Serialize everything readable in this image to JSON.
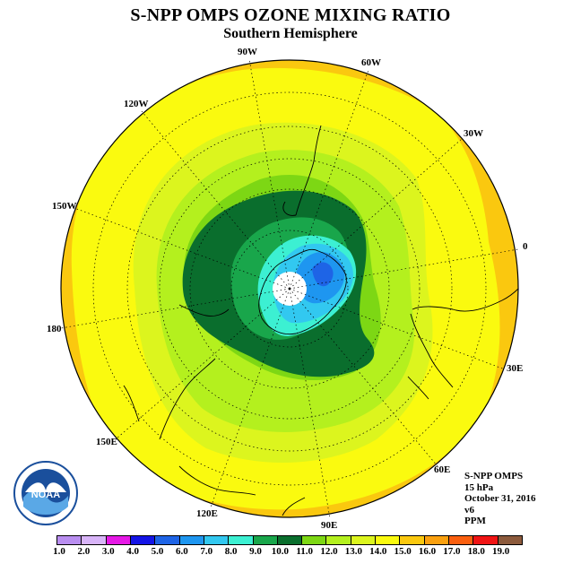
{
  "title": "S-NPP OMPS OZONE MIXING RATIO",
  "subtitle": "Southern Hemisphere",
  "lon_labels": [
    "90W",
    "60W",
    "30W",
    "0",
    "30E",
    "60E",
    "90E",
    "120E",
    "150E",
    "180",
    "150W",
    "120W"
  ],
  "info": {
    "instrument": "S-NPP OMPS",
    "level": "15 hPa",
    "date": "October 31, 2016",
    "version": "v6",
    "units": "PPM"
  },
  "colorbar": {
    "ticks": [
      "1.0",
      "2.0",
      "3.0",
      "4.0",
      "5.0",
      "6.0",
      "7.0",
      "8.0",
      "9.0",
      "10.0",
      "11.0",
      "12.0",
      "13.0",
      "14.0",
      "15.0",
      "16.0",
      "17.0",
      "18.0",
      "19.0"
    ],
    "colors": [
      "#b98ef0",
      "#d8b4f8",
      "#e619e6",
      "#1414e6",
      "#1e64e6",
      "#1e96f0",
      "#32c8f0",
      "#3cf0d2",
      "#19a64b",
      "#0a6e2d",
      "#7dd714",
      "#b4f01e",
      "#dcf51e",
      "#fafa0f",
      "#fac80f",
      "#faa00f",
      "#fa5f0f",
      "#f01414",
      "#8c5a3c"
    ]
  },
  "logo_text": "NOAA"
}
